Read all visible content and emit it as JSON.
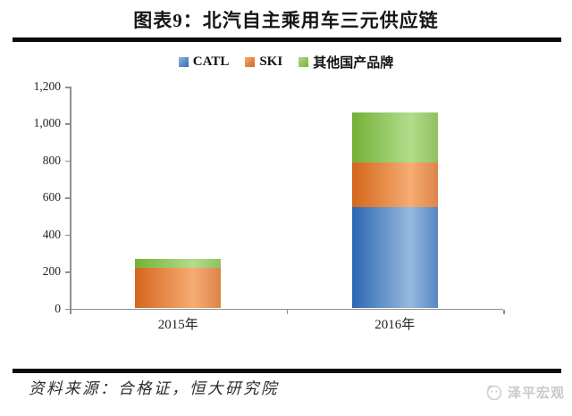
{
  "header": {
    "title": "图表9：北汽自主乘用车三元供应链"
  },
  "footer": {
    "source": "资料来源：合格证，恒大研究院",
    "logo_text": "泽平宏观"
  },
  "colors": {
    "catl_dark": "#2C67B2",
    "catl_light": "#96B9DE",
    "ski_dark": "#D4661C",
    "ski_light": "#F6AC73",
    "other_dark": "#74B138",
    "other_light": "#B2DC8B",
    "axis_gray": "#8f8f8f",
    "rule_black": "#0b0b0b"
  },
  "chart_data": {
    "type": "bar",
    "stacked": true,
    "categories": [
      "2015年",
      "2016年"
    ],
    "series": [
      {
        "name": "CATL",
        "values": [
          0,
          550
        ],
        "color_dark": "#2C67B2",
        "color_light": "#96B9DE"
      },
      {
        "name": "SKI",
        "values": [
          220,
          240
        ],
        "color_dark": "#D4661C",
        "color_light": "#F6AC73"
      },
      {
        "name": "其他国产品牌",
        "values": [
          50,
          270
        ],
        "color_dark": "#74B138",
        "color_light": "#B2DC8B"
      }
    ],
    "totals": [
      270,
      1060
    ],
    "title": "图表9：北汽自主乘用车三元供应链",
    "xlabel": "",
    "ylabel": "",
    "ylim": [
      0,
      1200
    ],
    "ytick_interval": 200,
    "ytick_labels": [
      "0",
      "200",
      "400",
      "600",
      "800",
      "1,000",
      "1,200"
    ],
    "legend_position": "top-center",
    "grid": false
  }
}
